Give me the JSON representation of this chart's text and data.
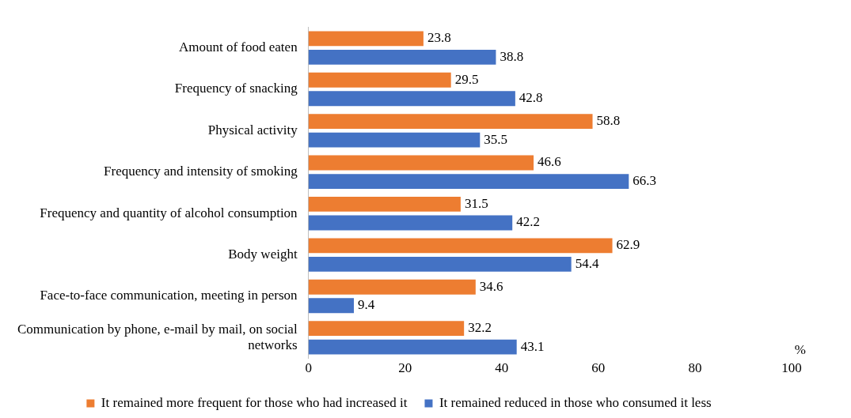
{
  "chart_data": {
    "type": "bar",
    "orientation": "horizontal",
    "xlabel": "%",
    "categories": [
      "Amount of food eaten",
      "Frequency of snacking",
      "Physical activity",
      "Frequency and intensity of smoking",
      "Frequency and quantity of alcohol consumption",
      "Body weight",
      "Face-to-face communication, meeting in person",
      "Communication by phone, e-mail by mail, on social networks"
    ],
    "series": [
      {
        "name": "It remained more frequent for those who had increased it",
        "color": "#ed7d31",
        "values": [
          23.8,
          29.5,
          58.8,
          46.6,
          31.5,
          62.9,
          34.6,
          32.2
        ]
      },
      {
        "name": "It remained reduced in those who consumed it less",
        "color": "#4472c4",
        "values": [
          38.8,
          42.8,
          35.5,
          66.3,
          42.2,
          54.4,
          9.4,
          43.1
        ]
      }
    ],
    "xlim": [
      0,
      100
    ],
    "xticks": [
      0,
      20,
      40,
      60,
      80,
      100
    ],
    "grid": false,
    "legend": "bottom",
    "data_labels": true
  }
}
